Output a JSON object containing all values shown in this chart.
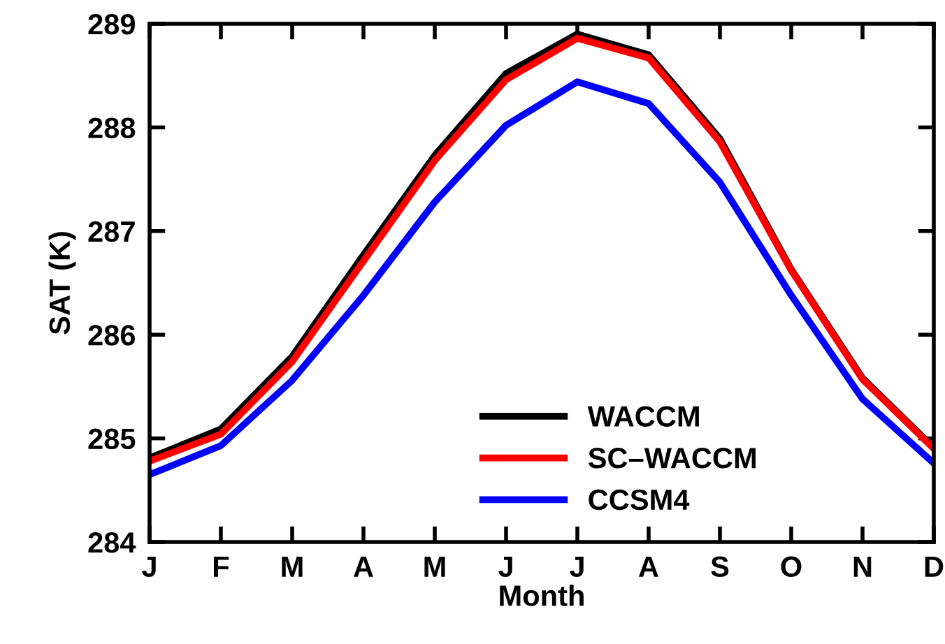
{
  "chart_data": {
    "type": "line",
    "xlabel": "Month",
    "ylabel": "SAT (K)",
    "categories": [
      "J",
      "F",
      "M",
      "A",
      "M",
      "J",
      "J",
      "A",
      "S",
      "O",
      "N",
      "D"
    ],
    "series": [
      {
        "name": "WACCM",
        "color": "#000000",
        "values": [
          284.81,
          285.09,
          285.79,
          286.77,
          287.73,
          288.52,
          288.9,
          288.7,
          287.89,
          286.63,
          285.58,
          284.91
        ]
      },
      {
        "name": "SC–WACCM",
        "color": "#ff0000",
        "values": [
          284.78,
          285.04,
          285.74,
          286.71,
          287.68,
          288.46,
          288.86,
          288.67,
          287.86,
          286.62,
          285.57,
          284.9
        ]
      },
      {
        "name": "CCSM4",
        "color": "#0000ff",
        "values": [
          284.65,
          284.93,
          285.56,
          286.38,
          287.28,
          288.02,
          288.44,
          288.23,
          287.47,
          286.38,
          285.38,
          284.76
        ]
      }
    ],
    "ylim": [
      284,
      289
    ],
    "yticks": [
      284,
      285,
      286,
      287,
      288,
      289
    ],
    "grid": false,
    "legend": "bottom",
    "marker": "none",
    "line_style": "solid"
  }
}
